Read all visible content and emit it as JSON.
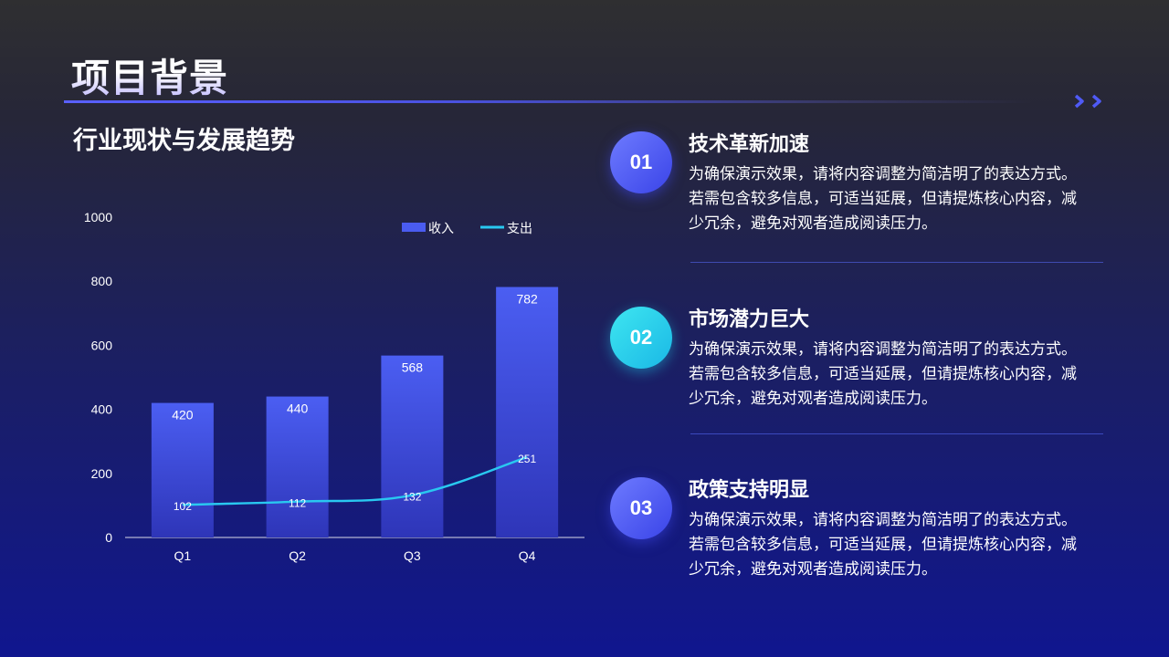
{
  "header": {
    "title": "项目背景",
    "subtitle": "行业现状与发展趋势"
  },
  "chart_data": {
    "type": "bar",
    "categories": [
      "Q1",
      "Q2",
      "Q3",
      "Q4"
    ],
    "series": [
      {
        "name": "收入",
        "type": "bar",
        "values": [
          420,
          440,
          568,
          782
        ],
        "color": "#4a5cf0"
      },
      {
        "name": "支出",
        "type": "line",
        "values": [
          102,
          112,
          132,
          251
        ],
        "color": "#29c8f0"
      }
    ],
    "ylim": [
      0,
      1000
    ],
    "yticks": [
      0,
      200,
      400,
      600,
      800,
      1000
    ],
    "legend": "top-right",
    "grid": false
  },
  "points": [
    {
      "number": "01",
      "title": "技术革新加速",
      "text": "为确保演示效果，请将内容调整为简洁明了的表达方式。若需包含较多信息，可适当延展，但请提炼核心内容，减少冗余，避免对观者造成阅读压力。",
      "badge_color": "#4f5af5"
    },
    {
      "number": "02",
      "title": "市场潜力巨大",
      "text": "为确保演示效果，请将内容调整为简洁明了的表达方式。若需包含较多信息，可适当延展，但请提炼核心内容，减少冗余，避免对观者造成阅读压力。",
      "badge_color": "#22c8ea"
    },
    {
      "number": "03",
      "title": "政策支持明显",
      "text": "为确保演示效果，请将内容调整为简洁明了的表达方式。若需包含较多信息，可适当延展，但请提炼核心内容，减少冗余，避免对观者造成阅读压力。",
      "badge_color": "#4f5af5"
    }
  ],
  "icons": {
    "decoration": "double-chevron-right-icon"
  }
}
